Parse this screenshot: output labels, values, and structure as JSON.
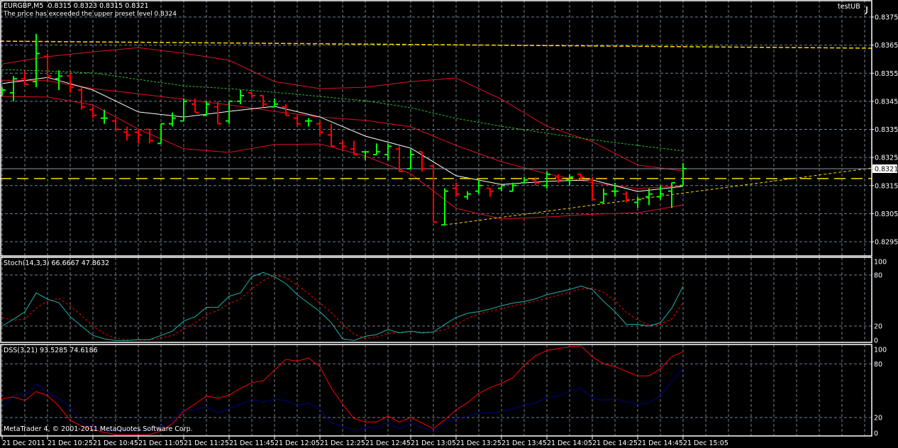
{
  "header": {
    "symbol_line": "EURGBP,M5  0.8315 0.8323 0.8315 0.8321",
    "alert_text": "The price has exceeded the upper preset level 0.8324",
    "expert_name": "testUB",
    "copyright": "MetaTrader 4, © 2001-2011 MetaQuotes Software Corp."
  },
  "colors": {
    "background": "#000000",
    "grid": "#708090",
    "bar_up": "#00ff00",
    "bar_down": "#ff0000",
    "bands": "#e0102a",
    "ma": "#ffffff",
    "slow_ma": "#2eb82e",
    "levels": "#ffd700",
    "trendline": "#ffd700",
    "bid_line": "#8c96a0",
    "stoch_main": "#20b2aa",
    "stoch_signal": "#ff0000",
    "dss_main": "#ff0000",
    "dss_signal": "#00008b"
  },
  "price_axis": {
    "ticks": [
      "0.8375",
      "0.8365",
      "0.8355",
      "0.8345",
      "0.8335",
      "0.8325",
      "0.8315",
      "0.8305",
      "0.8295"
    ],
    "current_price": "0.8321"
  },
  "time_axis": {
    "labels": [
      "21 Dec 2011",
      "21 Dec 10:25",
      "21 Dec 10:45",
      "21 Dec 11:05",
      "21 Dec 11:25",
      "21 Dec 11:45",
      "21 Dec 12:05",
      "21 Dec 12:25",
      "21 Dec 12:45",
      "21 Dec 13:05",
      "21 Dec 13:25",
      "21 Dec 13:45",
      "21 Dec 14:05",
      "21 Dec 14:25",
      "21 Dec 14:45",
      "21 Dec 15:05"
    ]
  },
  "bars": [
    [
      "10:05",
      0.8347,
      0.835,
      0.8347,
      0.8349
    ],
    [
      "10:10",
      0.8348,
      0.8354,
      0.8345,
      0.8353
    ],
    [
      "10:15",
      0.8353,
      0.8356,
      0.8351,
      0.8351
    ],
    [
      "10:20",
      0.8352,
      0.8369,
      0.835,
      0.8362
    ],
    [
      "10:25",
      0.8361,
      0.8362,
      0.8352,
      0.8354
    ],
    [
      "10:30",
      0.8353,
      0.8356,
      0.8349,
      0.8354
    ],
    [
      "10:35",
      0.8354,
      0.8355,
      0.8348,
      0.835
    ],
    [
      "10:40",
      0.8349,
      0.835,
      0.8342,
      0.8343
    ],
    [
      "10:45",
      0.8342,
      0.8343,
      0.8339,
      0.834
    ],
    [
      "10:50",
      0.8339,
      0.8342,
      0.8337,
      0.8339
    ],
    [
      "10:55",
      0.8338,
      0.8339,
      0.8335,
      0.8335
    ],
    [
      "11:00",
      0.8334,
      0.8336,
      0.8331,
      0.8333
    ],
    [
      "11:05",
      0.8334,
      0.8335,
      0.833,
      0.8333
    ],
    [
      "11:10",
      0.8335,
      0.8335,
      0.833,
      0.8331
    ],
    [
      "11:15",
      0.833,
      0.8337,
      0.833,
      0.8337
    ],
    [
      "11:20",
      0.8337,
      0.8341,
      0.8336,
      0.8339
    ],
    [
      "11:25",
      0.8338,
      0.8346,
      0.8338,
      0.8345
    ],
    [
      "11:30",
      0.8344,
      0.8346,
      0.8341,
      0.8341
    ],
    [
      "11:35",
      0.834,
      0.8345,
      0.834,
      0.8344
    ],
    [
      "11:40",
      0.8343,
      0.8345,
      0.8337,
      0.8337
    ],
    [
      "11:45",
      0.8338,
      0.8345,
      0.8337,
      0.8345
    ],
    [
      "11:50",
      0.8345,
      0.8349,
      0.8344,
      0.8347
    ],
    [
      "11:55",
      0.8348,
      0.8348,
      0.8346,
      0.8347
    ],
    [
      "12:00",
      0.8347,
      0.8347,
      0.8343,
      0.8344
    ],
    [
      "12:05",
      0.8343,
      0.8346,
      0.8343,
      0.8344
    ],
    [
      "12:10",
      0.8343,
      0.8344,
      0.834,
      0.834
    ],
    [
      "12:15",
      0.8339,
      0.834,
      0.8336,
      0.8337
    ],
    [
      "12:20",
      0.8338,
      0.8339,
      0.8336,
      0.8338
    ],
    [
      "12:25",
      0.8337,
      0.8338,
      0.8333,
      0.8334
    ],
    [
      "12:30",
      0.8333,
      0.8337,
      0.8329,
      0.8329
    ],
    [
      "12:35",
      0.833,
      0.8331,
      0.8328,
      0.8329
    ],
    [
      "12:40",
      0.8328,
      0.8331,
      0.8326,
      0.8326
    ],
    [
      "12:45",
      0.8327,
      0.8327,
      0.8324,
      0.8327
    ],
    [
      "12:50",
      0.8326,
      0.833,
      0.8326,
      0.8327
    ],
    [
      "12:55",
      0.8326,
      0.833,
      0.8324,
      0.8329
    ],
    [
      "13:00",
      0.8328,
      0.8329,
      0.832,
      0.832
    ],
    [
      "13:05",
      0.8321,
      0.8328,
      0.8321,
      0.8326
    ],
    [
      "13:10",
      0.8327,
      0.8327,
      0.832,
      0.8321
    ],
    [
      "13:15",
      0.8322,
      0.8322,
      0.8302,
      0.8302
    ],
    [
      "13:20",
      0.8301,
      0.8314,
      0.8301,
      0.8313
    ],
    [
      "13:25",
      0.8314,
      0.8316,
      0.8311,
      0.8312
    ],
    [
      "13:30",
      0.8311,
      0.8313,
      0.831,
      0.8312
    ],
    [
      "13:35",
      0.8313,
      0.8317,
      0.8312,
      0.8315
    ],
    [
      "13:40",
      0.8314,
      0.8314,
      0.8311,
      0.8313
    ],
    [
      "13:45",
      0.8314,
      0.8315,
      0.8313,
      0.8315
    ],
    [
      "13:50",
      0.8313,
      0.8316,
      0.8313,
      0.8315
    ],
    [
      "13:55",
      0.8316,
      0.8318,
      0.8316,
      0.8317
    ],
    [
      "14:00",
      0.8317,
      0.8318,
      0.8315,
      0.8316
    ],
    [
      "14:05",
      0.8315,
      0.832,
      0.8314,
      0.8319
    ],
    [
      "14:10",
      0.8318,
      0.8319,
      0.8316,
      0.8317
    ],
    [
      "14:15",
      0.8317,
      0.8319,
      0.8315,
      0.8318
    ],
    [
      "14:20",
      0.8319,
      0.8319,
      0.8317,
      0.8318
    ],
    [
      "14:25",
      0.8317,
      0.8318,
      0.831,
      0.831
    ],
    [
      "14:30",
      0.8309,
      0.8314,
      0.8309,
      0.8312
    ],
    [
      "14:35",
      0.8313,
      0.8316,
      0.8311,
      0.8313
    ],
    [
      "14:40",
      0.8312,
      0.8313,
      0.8309,
      0.831
    ],
    [
      "14:45",
      0.8309,
      0.8311,
      0.8307,
      0.831
    ],
    [
      "14:50",
      0.8311,
      0.8314,
      0.8308,
      0.8312
    ],
    [
      "14:55",
      0.8311,
      0.8315,
      0.831,
      0.8312
    ],
    [
      "15:00",
      0.8313,
      0.8316,
      0.8307,
      0.8316
    ],
    [
      "15:05",
      0.8315,
      0.8323,
      0.8315,
      0.8321
    ]
  ],
  "overlays": {
    "times": [
      "10:05",
      "10:25",
      "10:45",
      "11:05",
      "11:25",
      "11:45",
      "12:05",
      "12:25",
      "12:45",
      "13:05",
      "13:25",
      "13:45",
      "14:05",
      "14:25",
      "14:45",
      "15:05"
    ],
    "upper_band": [
      0.83583,
      0.83609,
      0.83626,
      0.83641,
      0.83621,
      0.83596,
      0.8352,
      0.83495,
      0.835,
      0.8352,
      0.83533,
      0.83457,
      0.83361,
      0.83306,
      0.83223,
      0.83202
    ],
    "mid_band": [
      0.83525,
      0.83523,
      0.83495,
      0.83477,
      0.83457,
      0.83437,
      0.83414,
      0.83394,
      0.83382,
      0.83359,
      0.83293,
      0.83235,
      0.83192,
      0.8316,
      0.83139,
      0.83149
    ],
    "lower_band": [
      0.83467,
      0.83465,
      0.83437,
      0.83351,
      0.83281,
      0.83268,
      0.83296,
      0.83298,
      0.83255,
      0.83192,
      0.83069,
      0.83031,
      0.83038,
      0.83048,
      0.83053,
      0.83081
    ],
    "ma": [
      0.83513,
      0.83535,
      0.8349,
      0.83412,
      0.83394,
      0.83414,
      0.83432,
      0.83394,
      0.83326,
      0.83283,
      0.83185,
      0.83154,
      0.83165,
      0.8317,
      0.83129,
      0.83147
    ],
    "slow_ma": [
      0.83563,
      0.83558,
      0.83551,
      0.83528,
      0.83505,
      0.83495,
      0.83482,
      0.83467,
      0.83452,
      0.83427,
      0.83389,
      0.83361,
      0.83336,
      0.83313,
      0.83293,
      0.83273
    ],
    "upper_level": {
      "start": 0.83664,
      "end": 0.83639
    },
    "preset_level": 0.83175,
    "trendline": {
      "start_time": "13:20",
      "start_price": 0.8301,
      "end_time": "15:05",
      "end_price": 0.83123
    }
  },
  "stochastic": {
    "label": "Stoch(14,3,3) 66.6667 47.8632",
    "axis_labels": [
      "100",
      "80",
      "20",
      "0"
    ],
    "levels": [
      80,
      20
    ],
    "main": [
      20,
      28,
      36.7,
      59,
      51.7,
      47.5,
      31,
      20,
      9,
      5,
      3,
      3,
      4,
      4,
      9,
      14,
      26,
      31,
      42,
      42,
      55,
      59,
      78,
      83,
      78,
      70,
      57,
      47,
      37,
      24,
      5,
      3,
      8,
      10,
      16,
      12,
      14,
      12,
      13,
      22,
      30,
      35,
      37,
      40,
      44,
      47,
      49,
      52,
      57,
      60,
      63,
      67,
      63,
      49,
      37,
      22,
      22,
      20,
      24,
      41,
      66.6667
    ],
    "signal": [
      30,
      27,
      28.2,
      41.2,
      49.1,
      52.7,
      43.4,
      32.8,
      20,
      11.3,
      5.7,
      3.7,
      3.3,
      3.7,
      5.7,
      9,
      16.3,
      23.7,
      33,
      38.3,
      46.3,
      52,
      64,
      73.3,
      79.7,
      77,
      68.3,
      58,
      47,
      36,
      22,
      10.7,
      5.3,
      7,
      11.3,
      12.7,
      14,
      12.7,
      13,
      15.7,
      21.7,
      29,
      34,
      37.3,
      40.3,
      43.7,
      46.7,
      49.3,
      52.7,
      56.3,
      60,
      63.3,
      64.3,
      59.7,
      49.7,
      36,
      27,
      21.3,
      22,
      28.3,
      47.8632
    ]
  },
  "dss": {
    "label": "DSS(3,21) 93.5285 74.6186",
    "axis_labels": [
      "100",
      "80",
      "20",
      "0"
    ],
    "levels": [
      80,
      20
    ],
    "main": [
      41,
      43,
      39,
      49,
      44.5,
      32.7,
      17,
      10.5,
      6.5,
      3.4,
      1,
      1,
      1,
      1,
      5,
      13,
      27,
      35,
      44,
      41.5,
      45,
      52.5,
      59,
      61,
      73,
      85,
      83,
      86.5,
      77,
      53,
      35,
      19,
      15,
      15,
      21.5,
      15,
      20,
      14,
      7.5,
      17.5,
      28.5,
      36.5,
      47,
      53.5,
      58,
      64.5,
      78.5,
      89,
      95,
      97,
      99,
      100,
      88,
      80,
      77,
      71.5,
      66.5,
      66.5,
      74.5,
      88,
      93.5285
    ],
    "signal": [
      31,
      45,
      44.5,
      57,
      48.5,
      41.5,
      31,
      15,
      9,
      7,
      5,
      5,
      5,
      6,
      10.5,
      17,
      28,
      29,
      32,
      25,
      30,
      35,
      40,
      37.5,
      40.5,
      39,
      33,
      36.5,
      29,
      14,
      10,
      6,
      8,
      9,
      15,
      7.5,
      13.5,
      9,
      4,
      15,
      19,
      21.5,
      25,
      25,
      27,
      30,
      34,
      36,
      42.5,
      44,
      49.5,
      53,
      41.5,
      39.5,
      40.5,
      37.5,
      35,
      36.5,
      44.5,
      61,
      74.6186
    ]
  }
}
